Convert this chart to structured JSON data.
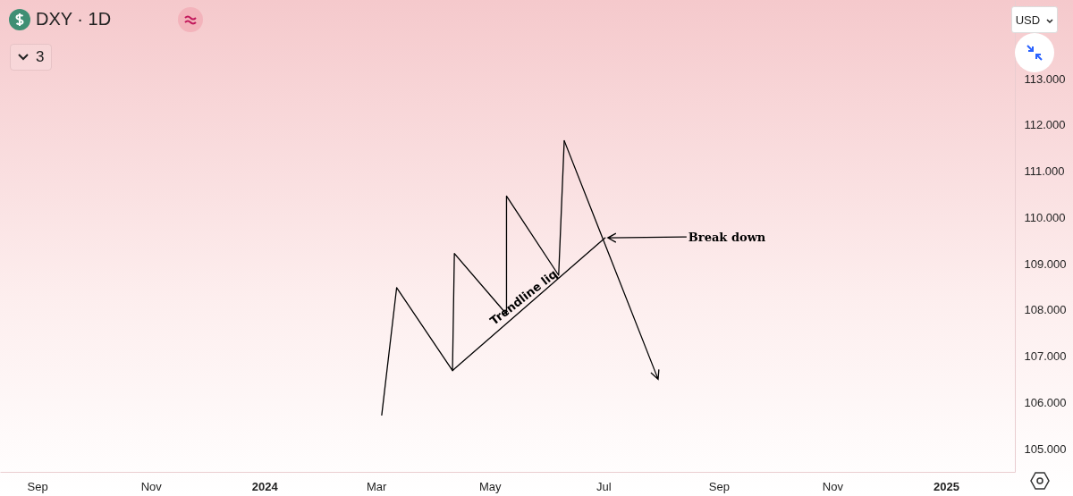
{
  "chart_data": {
    "type": "line",
    "title": "DXY · 1D",
    "annotations": [
      {
        "text": "Trendline liq",
        "x": "2024-05-22",
        "y": 108.13
      },
      {
        "text": "Break down",
        "x": "2024-07-02",
        "y": 109.56
      },
      "3",
      "USD"
    ],
    "series": [
      {
        "color": "#000000",
        "x": [
          "2024-03-04",
          "2024-03-12",
          "2024-04-11",
          "2024-04-12",
          "2024-05-10",
          "2024-05-10",
          "2024-06-07",
          "2024-06-10"
        ],
        "values": [
          105.73,
          108.48,
          106.69,
          109.22,
          107.91,
          110.46,
          108.75,
          111.66
        ]
      },
      {
        "color": "#000000",
        "x": [
          "2024-04-11",
          "2024-07-02"
        ],
        "values": [
          106.69,
          109.56
        ]
      }
    ],
    "xlim": [
      "2023-08-12",
      "2025-02-07"
    ],
    "xticks": [
      {
        "value": "2023-09",
        "label": "Sep"
      },
      {
        "value": "2023-11",
        "label": "Nov"
      },
      {
        "value": "2024-01",
        "label": "2024"
      },
      {
        "value": "2024-03",
        "label": "Mar"
      },
      {
        "value": "2024-05",
        "label": "May"
      },
      {
        "value": "2024-07",
        "label": "Jul"
      },
      {
        "value": "2024-09",
        "label": "Sep"
      },
      {
        "value": "2024-11",
        "label": "Nov"
      },
      {
        "value": "2025-01",
        "label": "2025"
      }
    ],
    "ylim": [
      104.5,
      114.7
    ],
    "yticks": [
      {
        "value": 105,
        "label": "105.000"
      },
      {
        "value": 106,
        "label": "106.000"
      },
      {
        "value": 107,
        "label": "107.000"
      },
      {
        "value": 108,
        "label": "108.000"
      },
      {
        "value": 109,
        "label": "109.000"
      },
      {
        "value": 110,
        "label": "110.000"
      },
      {
        "value": 111,
        "label": "111.000"
      },
      {
        "value": 112,
        "label": "112.000"
      },
      {
        "value": 113,
        "label": "113.000"
      }
    ],
    "grid": false,
    "marker": "none",
    "line_style": "solid"
  }
}
